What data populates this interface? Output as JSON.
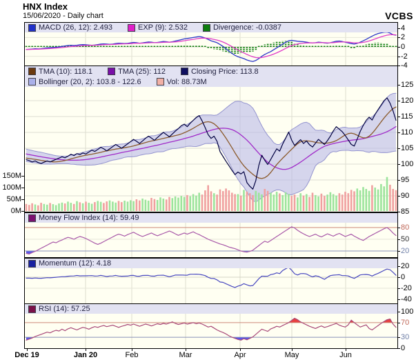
{
  "header": {
    "title": "HNX Index",
    "subtitle": "15/06/2020 - Daily chart",
    "brand": "VCBS"
  },
  "colors": {
    "close": "#000040",
    "tma10": "#8b5a2b",
    "tma25": "#a02ac8",
    "boll_fill": "#bcbce8",
    "boll_edge": "#9393cf",
    "vol_up": "#9ce49c",
    "vol_down": "#f0a0a0",
    "macd": "#2a35c8",
    "exp": "#e03ac8",
    "divergence": "#0d7d0d",
    "mfi": "#a858a8",
    "momentum": "#4848c0",
    "rsi": "#a84878",
    "over_line": "#cc8878",
    "under_line": "#8890b8",
    "over_fill": "#e84040",
    "under_fill": "#5858e8",
    "grid": "#dcdccd",
    "grid_h": "#ddddd2",
    "grid_soft": "#e6e6d8",
    "plot_bg": "#fffff2",
    "legend_bg": "#e2e2f2"
  },
  "chart_data": {
    "type": "line",
    "title": "HNX Index daily chart with MACD, Bollinger, Volume, MFI, Momentum, RSI",
    "x_axis": {
      "months": [
        {
          "t": "Dec 19",
          "bold": true
        },
        {
          "t": "Jan 20",
          "bold": true
        },
        {
          "t": "Feb"
        },
        {
          "t": "Mar"
        },
        {
          "t": "Apr"
        },
        {
          "t": "May"
        },
        {
          "t": "Jun"
        }
      ]
    },
    "panels": {
      "macd": {
        "legend": [
          {
            "label": "MACD (26, 12): 2.493",
            "swatch": "#2030c8"
          },
          {
            "label": "EXP (9): 2.532",
            "swatch": "#e020c8"
          },
          {
            "label": "Divergence: -0.0387",
            "swatch": "#0d7d0d"
          }
        ],
        "ticks": [
          {
            "v": 4,
            "t": "4"
          },
          {
            "v": 2,
            "t": "2"
          },
          {
            "v": 0,
            "t": "0"
          },
          {
            "v": -2,
            "t": "-2"
          },
          {
            "v": -4,
            "t": "-4"
          }
        ],
        "ylim": [
          -3.6,
          3.1
        ]
      },
      "price": {
        "legend_row1": [
          {
            "label": "TMA (10): 118.1",
            "swatch": "#6b3a10"
          },
          {
            "label": "TMA (25): 112",
            "swatch": "#7a10a8"
          },
          {
            "label": "Closing Price: 113.8",
            "swatch": "#101060"
          }
        ],
        "legend_row2": [
          {
            "label": "Bollinger (20, 2): 103.8 - 122.6",
            "swatch": "#aab0ea"
          },
          {
            "label": "Vol: 88.73M",
            "swatch": "#f2b0a6"
          }
        ],
        "ticks": [
          {
            "v": 125,
            "t": "125"
          },
          {
            "v": 120,
            "t": "120"
          },
          {
            "v": 115,
            "t": "115"
          },
          {
            "v": 110,
            "t": "110"
          },
          {
            "v": 105,
            "t": "105"
          },
          {
            "v": 100,
            "t": "100"
          },
          {
            "v": 95,
            "t": "95"
          },
          {
            "v": 90,
            "t": "90"
          },
          {
            "v": 85,
            "t": "85"
          }
        ],
        "vol_ticks": [
          {
            "v": 150,
            "t": "150M"
          },
          {
            "v": 100,
            "t": "100M"
          },
          {
            "v": 50,
            "t": "50M"
          },
          {
            "v": 0,
            "t": "0M"
          }
        ],
        "ylim": [
          85,
          125
        ]
      },
      "mfi": {
        "legend": [
          {
            "label": "Money Flow Index (14): 59.49",
            "swatch": "#7a1070"
          }
        ],
        "ticks": [
          {
            "v": 80,
            "t": "80",
            "c": "#c06858"
          },
          {
            "v": 50,
            "t": "50",
            "c": "#303030"
          },
          {
            "v": 20,
            "t": "20",
            "c": "#7080a8"
          }
        ],
        "upper": 80,
        "lower": 20
      },
      "momentum": {
        "legend": [
          {
            "label": "Momentum (12): 4.18",
            "swatch": "#1820a0"
          }
        ],
        "ticks": [
          {
            "v": 20,
            "t": "20"
          },
          {
            "v": 0,
            "t": "0"
          },
          {
            "v": -20,
            "t": "-20"
          },
          {
            "v": -40,
            "t": "-40"
          }
        ]
      },
      "rsi": {
        "legend": [
          {
            "label": "RSI (14): 57.25",
            "swatch": "#7a1048"
          }
        ],
        "ticks": [
          {
            "v": 100,
            "t": "100"
          },
          {
            "v": 70,
            "t": "70",
            "c": "#c06858"
          },
          {
            "v": 30,
            "t": "30",
            "c": "#7080a8"
          },
          {
            "v": 0,
            "t": "0"
          }
        ],
        "upper": 70,
        "lower": 30
      }
    },
    "series": {
      "close_warmup": [
        106.2,
        105.9,
        105.6,
        105.4,
        105.1,
        104.9,
        104.6,
        104.4,
        104.1,
        103.9,
        103.7,
        103.5,
        103.3,
        103.1,
        102.9,
        102.7,
        102.5,
        102.4,
        102.2,
        102.1,
        101.9,
        101.8,
        101.7,
        101.6,
        101.5
      ],
      "close": [
        101.4,
        101.1,
        100.7,
        101.0,
        100.5,
        100.2,
        100.6,
        101.0,
        100.7,
        101.1,
        101.5,
        101.9,
        102.3,
        102.0,
        102.5,
        103.1,
        102.7,
        103.3,
        103.0,
        103.5,
        103.2,
        103.8,
        104.4,
        104.0,
        104.6,
        105.3,
        104.8,
        104.2,
        104.8,
        105.5,
        106.2,
        105.6,
        105.0,
        105.7,
        106.4,
        107.1,
        107.8,
        107.2,
        106.5,
        107.3,
        108.1,
        108.8,
        108.2,
        107.5,
        108.4,
        109.2,
        110.0,
        109.3,
        108.6,
        109.5,
        110.4,
        111.2,
        112.1,
        112.6,
        111.8,
        112.9,
        113.8,
        114.7,
        115.3,
        113.6,
        111.5,
        109.3,
        108.1,
        108.8,
        107.2,
        103.9,
        102.4,
        100.9,
        99.5,
        98.0,
        96.7,
        97.5,
        96.9,
        97.6,
        94.2,
        93.0,
        92.1,
        94.8,
        99.6,
        102.8,
        101.2,
        99.9,
        101.5,
        103.2,
        104.8,
        104.1,
        106.3,
        108.2,
        110.1,
        107.6,
        105.9,
        106.8,
        107.7,
        106.5,
        107.3,
        106.1,
        105.4,
        106.6,
        107.8,
        107.0,
        106.2,
        107.4,
        108.8,
        110.5,
        111.8,
        111.0,
        110.2,
        109.0,
        107.6,
        106.2,
        105.7,
        107.9,
        110.3,
        112.2,
        113.8,
        114.8,
        113.9,
        115.7,
        117.2,
        118.6,
        120.0,
        120.9,
        119.2,
        116.8,
        113.8
      ],
      "volume": [
        30,
        26,
        33,
        28,
        24,
        35,
        30,
        27,
        34,
        29,
        25,
        32,
        36,
        32,
        40,
        35,
        30,
        42,
        37,
        33,
        40,
        35,
        31,
        38,
        43,
        39,
        34,
        41,
        45,
        40,
        36,
        43,
        38,
        44,
        40,
        46,
        42,
        50,
        45,
        53,
        48,
        44,
        56,
        51,
        47,
        58,
        53,
        49,
        60,
        55,
        62,
        57,
        64,
        60,
        68,
        63,
        72,
        66,
        78,
        70,
        88,
        110,
        84,
        76,
        70,
        92,
        85,
        96,
        88,
        78,
        72,
        72,
        66,
        90,
        83,
        76,
        68,
        86,
        78,
        71,
        94,
        86,
        78,
        70,
        82,
        75,
        68,
        80,
        73,
        64,
        70,
        58,
        76,
        66,
        72,
        60,
        78,
        68,
        62,
        74,
        64,
        70,
        80,
        72,
        66,
        76,
        70,
        82,
        76,
        90,
        84,
        96,
        88,
        102,
        94,
        86,
        110,
        100,
        92,
        115,
        105,
        145,
        112,
        94,
        88.73
      ],
      "macd": [
        -0.55,
        -0.5,
        -0.45,
        -0.4,
        -0.42,
        -0.38,
        -0.3,
        -0.22,
        -0.18,
        -0.12,
        -0.08,
        0.0,
        0.1,
        0.2,
        0.3,
        0.35,
        0.3,
        0.35,
        0.45,
        0.5,
        0.45,
        0.4,
        0.35,
        0.4,
        0.5,
        0.6,
        0.65,
        0.6,
        0.55,
        0.6,
        0.7,
        0.8,
        0.75,
        0.7,
        0.75,
        0.85,
        0.95,
        0.9,
        0.8,
        0.85,
        0.95,
        1.05,
        1.0,
        0.9,
        0.95,
        1.05,
        1.15,
        1.1,
        1.0,
        1.1,
        1.25,
        1.4,
        1.55,
        1.7,
        1.8,
        1.9,
        2.0,
        2.1,
        2.2,
        2.1,
        1.9,
        1.6,
        1.3,
        1.1,
        0.9,
        0.5,
        0.1,
        -0.4,
        -0.9,
        -1.4,
        -1.8,
        -2.1,
        -2.3,
        -2.5,
        -2.8,
        -3.0,
        -3.1,
        -2.9,
        -2.5,
        -2.0,
        -1.6,
        -1.3,
        -1.0,
        -0.6,
        -0.2,
        0.2,
        0.6,
        1.0,
        1.3,
        1.4,
        1.3,
        1.2,
        1.15,
        1.1,
        1.0,
        0.9,
        0.85,
        0.9,
        1.0,
        0.95,
        0.85,
        0.8,
        0.9,
        1.05,
        1.2,
        1.25,
        1.15,
        1.0,
        0.85,
        0.7,
        0.6,
        0.75,
        1.0,
        1.3,
        1.6,
        1.95,
        2.3,
        2.6,
        2.85,
        3.0,
        3.1,
        3.15,
        2.95,
        2.6,
        2.493
      ],
      "mfi": [
        14,
        12,
        16,
        19,
        23,
        27,
        31,
        35,
        39,
        43,
        41,
        45,
        48,
        52,
        55,
        53,
        50,
        54,
        57,
        55,
        52,
        48,
        44,
        40,
        37,
        40,
        44,
        48,
        52,
        56,
        60,
        63,
        61,
        58,
        62,
        65,
        68,
        64,
        60,
        57,
        60,
        63,
        66,
        62,
        59,
        62,
        65,
        68,
        71,
        68,
        64,
        60,
        63,
        66,
        63,
        66,
        69,
        65,
        62,
        58,
        54,
        50,
        47,
        44,
        41,
        38,
        36,
        33,
        30,
        28,
        26,
        23,
        20,
        18,
        17,
        19,
        22,
        28,
        34,
        40,
        45,
        42,
        47,
        52,
        57,
        62,
        67,
        72,
        77,
        82,
        79,
        73,
        68,
        64,
        60,
        57,
        60,
        63,
        59,
        56,
        60,
        64,
        61,
        58,
        62,
        65,
        61,
        57,
        60,
        63,
        58,
        54,
        50,
        47,
        52,
        57,
        61,
        65,
        69,
        73,
        77,
        80,
        74,
        66,
        59.49
      ],
      "rsi": [
        22,
        25,
        28,
        32,
        35,
        38,
        41,
        44,
        42,
        46,
        49,
        47,
        52,
        48,
        53,
        56,
        53,
        50,
        54,
        57,
        55,
        52,
        56,
        59,
        57,
        60,
        62,
        59,
        61,
        63,
        60,
        57,
        60,
        62,
        65,
        63,
        66,
        63,
        60,
        63,
        66,
        64,
        61,
        64,
        67,
        65,
        68,
        66,
        69,
        72,
        68,
        65,
        67,
        69,
        66,
        68,
        70,
        67,
        69,
        66,
        62,
        58,
        60,
        55,
        50,
        46,
        43,
        39,
        34,
        30,
        27,
        24,
        22,
        26,
        23,
        27,
        31,
        38,
        45,
        52,
        49,
        46,
        53,
        56,
        60,
        58,
        62,
        66,
        70,
        76,
        82,
        78,
        72,
        68,
        64,
        60,
        57,
        54,
        58,
        61,
        57,
        59,
        62,
        65,
        68,
        63,
        60,
        58,
        64,
        77,
        70,
        64,
        58,
        61,
        64,
        54,
        50,
        56,
        62,
        68,
        73,
        78,
        80,
        66,
        57.25
      ]
    }
  }
}
